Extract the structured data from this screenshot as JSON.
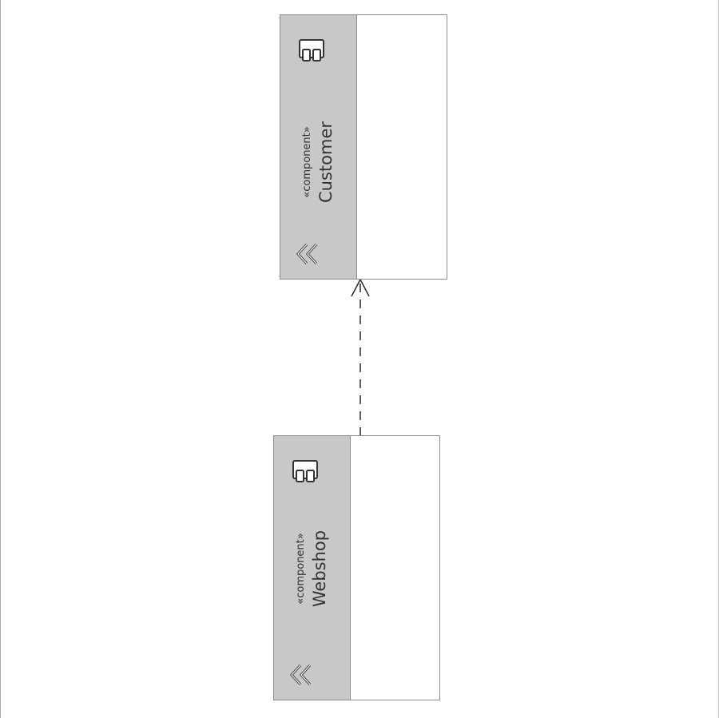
{
  "diagram": {
    "components": [
      {
        "id": "customer",
        "stereotype": "«component»",
        "name": "Customer",
        "icon": "component-icon",
        "collapse_icon": "collapse-chevron-icon"
      },
      {
        "id": "webshop",
        "stereotype": "«component»",
        "name": "Webshop",
        "icon": "component-icon",
        "collapse_icon": "collapse-chevron-icon"
      }
    ],
    "connectors": [
      {
        "type": "dependency",
        "from": "webshop",
        "to": "customer",
        "line_style": "dashed",
        "arrowhead": "open"
      }
    ],
    "colors": {
      "header_fill": "#c8c8c8",
      "border": "#8c8c8c",
      "body_fill": "#ffffff",
      "text": "#333333"
    }
  }
}
